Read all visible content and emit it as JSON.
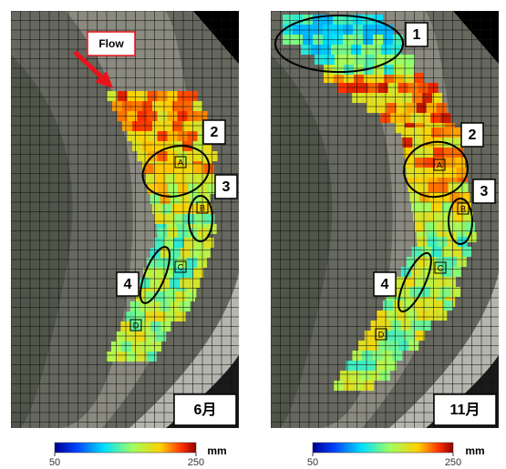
{
  "flow_label": "Flow",
  "panels": [
    {
      "month": "6月",
      "regions": [
        "2",
        "3",
        "4"
      ],
      "points": [
        "A",
        "B",
        "C",
        "D"
      ]
    },
    {
      "month": "11月",
      "regions": [
        "1",
        "2",
        "3",
        "4"
      ],
      "points": [
        "A",
        "B",
        "C",
        "D"
      ]
    }
  ],
  "colorbars": [
    {
      "unit": "mm",
      "range": [
        50,
        250
      ],
      "ticks": [
        50,
        250
      ]
    },
    {
      "unit": "mm",
      "range": [
        50,
        250
      ],
      "ticks": [
        50,
        250
      ]
    }
  ]
}
